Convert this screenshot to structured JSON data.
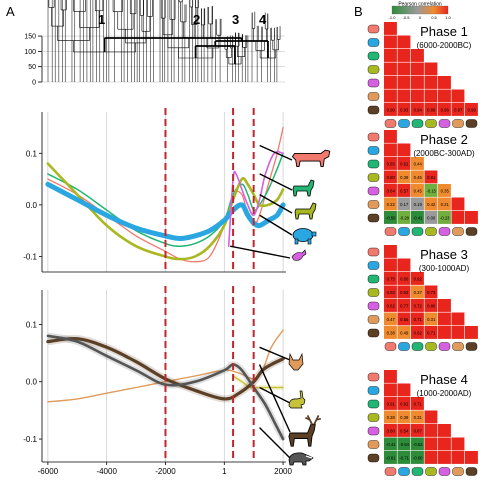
{
  "panel_labels": {
    "a": "A",
    "b": "B"
  },
  "colors": {
    "cattle": "#f07a6e",
    "goat": "#22b573",
    "sheep": "#a8b820",
    "pig": "#2aa7e0",
    "chicken": "#d560e0",
    "dog": "#e09a5a",
    "rabbit": "#c6c23a",
    "deer": "#5c4026",
    "badger": "#555555",
    "phase_line": "#c0272d",
    "matrix_high": "#e8261e",
    "matrix_low": "#2e8b3a"
  },
  "chart_data": [
    {
      "type": "dendrogram",
      "yticks": [
        0,
        50,
        100,
        150
      ],
      "ylim": [
        0,
        160
      ],
      "cluster_labels": [
        "1",
        "2",
        "3",
        "4"
      ]
    },
    {
      "type": "line",
      "xlim": [
        -6200,
        2100
      ],
      "ylim": [
        -0.13,
        0.18
      ],
      "yticks": [
        0.1,
        0.0,
        -0.1
      ],
      "ytick_labels": [
        "0.1",
        "0.0",
        "-0.1"
      ],
      "xgrid": [
        -6000,
        -4000,
        -2000,
        1,
        2000
      ],
      "phase_lines": [
        -2000,
        300,
        1000
      ],
      "series": [
        {
          "key": "cattle",
          "x": [
            -6000,
            -5000,
            -4000,
            -3000,
            -2000,
            -1500,
            -1000,
            -500,
            0,
            300,
            600,
            800,
            1000,
            1200,
            1500,
            1800,
            2000
          ],
          "y": [
            0.05,
            0.02,
            -0.02,
            -0.06,
            -0.09,
            -0.105,
            -0.11,
            -0.1,
            -0.04,
            0.02,
            0.02,
            -0.02,
            -0.04,
            -0.02,
            0.04,
            0.1,
            0.15
          ]
        },
        {
          "key": "goat",
          "x": [
            -6000,
            -5000,
            -4000,
            -3000,
            -2000,
            -1500,
            -1000,
            -500,
            0,
            300,
            600,
            800,
            1000,
            1200,
            1500,
            1800,
            2000
          ],
          "y": [
            0.06,
            0.03,
            -0.01,
            -0.05,
            -0.075,
            -0.08,
            -0.075,
            -0.06,
            -0.03,
            0.02,
            0.04,
            0.02,
            -0.01,
            0.0,
            0.03,
            0.07,
            0.1
          ]
        },
        {
          "key": "sheep",
          "x": [
            -6000,
            -5000,
            -4000,
            -3000,
            -2000,
            -1500,
            -1000,
            -500,
            0,
            300,
            600,
            800,
            1000,
            1200,
            1500,
            1800,
            2000
          ],
          "y": [
            0.08,
            0.02,
            -0.04,
            -0.08,
            -0.1,
            -0.105,
            -0.1,
            -0.08,
            -0.04,
            0.01,
            0.05,
            0.04,
            0.02,
            0.0,
            0.0,
            0.01,
            0.03
          ]
        },
        {
          "key": "pig",
          "x": [
            -6000,
            -5000,
            -4000,
            -3000,
            -2000,
            -1500,
            -1000,
            -500,
            0,
            300,
            600,
            800,
            1000,
            1200,
            1500,
            1800,
            2000
          ],
          "y": [
            0.04,
            0.01,
            -0.02,
            -0.045,
            -0.06,
            -0.065,
            -0.06,
            -0.05,
            -0.03,
            -0.01,
            0.0,
            -0.02,
            -0.035,
            -0.04,
            -0.03,
            -0.02,
            0.0
          ]
        },
        {
          "key": "chicken",
          "x": [
            150,
            300,
            400,
            600,
            800,
            1000,
            1200,
            1400,
            1700,
            2000
          ],
          "y": [
            -0.08,
            0.05,
            0.06,
            0.03,
            0.0,
            -0.02,
            0.01,
            0.06,
            0.1,
            0.1
          ]
        }
      ]
    },
    {
      "type": "line",
      "xlim": [
        -6200,
        2100
      ],
      "ylim": [
        -0.14,
        0.16
      ],
      "yticks": [
        0.1,
        0.0,
        -0.1
      ],
      "ytick_labels": [
        "0.1",
        "0.0",
        "-0.1"
      ],
      "xticks": [
        -6000,
        -4000,
        -2000,
        1,
        2000
      ],
      "xtick_labels": [
        "-6000",
        "-4000",
        "-2000",
        "1",
        "2000"
      ],
      "phase_lines": [
        -2000,
        300,
        1000
      ],
      "series": [
        {
          "key": "dog",
          "x": [
            -6000,
            -5000,
            -4000,
            -3000,
            -2000,
            -1000,
            0,
            500,
            1000,
            1300,
            1600,
            2000
          ],
          "y": [
            -0.035,
            -0.03,
            -0.02,
            -0.01,
            0.0,
            0.01,
            0.02,
            0.015,
            0.005,
            0.02,
            0.06,
            0.09
          ]
        },
        {
          "key": "rabbit",
          "x": [
            300,
            600,
            900,
            1200,
            1500,
            1800,
            2000
          ],
          "y": [
            0.01,
            0.0,
            -0.01,
            -0.01,
            -0.01,
            -0.01,
            -0.01
          ]
        },
        {
          "key": "deer",
          "x": [
            -6000,
            -5000,
            -4000,
            -3000,
            -2000,
            -1000,
            0,
            500,
            1000,
            1300,
            1600,
            2000
          ],
          "y": [
            0.07,
            0.075,
            0.06,
            0.035,
            0.005,
            -0.015,
            -0.03,
            -0.02,
            0.0,
            0.02,
            0.03,
            0.04
          ]
        },
        {
          "key": "badger",
          "x": [
            -6000,
            -5000,
            -4000,
            -3000,
            -2000,
            -1000,
            0,
            300,
            600,
            1000,
            1400,
            1800,
            2000
          ],
          "y": [
            0.08,
            0.07,
            0.045,
            0.02,
            -0.005,
            0.0,
            0.02,
            0.03,
            0.02,
            -0.01,
            -0.04,
            -0.08,
            -0.1
          ]
        }
      ]
    },
    {
      "type": "heatmap",
      "colorbar": {
        "title": "Pearson correlation",
        "ticks": [
          "-1.0",
          "-0.5",
          "0",
          "0.5",
          "1.0"
        ]
      },
      "phases": [
        {
          "name": "Phase 1",
          "period": "(6000-2000BC)",
          "rows": [
            [
              "0.90",
              "0.93",
              "0.94",
              "0.88",
              "0.96",
              "0.97",
              "0.99"
            ]
          ]
        },
        {
          "name": "Phase 2",
          "period": "(2000BC-300AD)",
          "rows": [
            [
              "0.85",
              "0.62",
              "0.44",
              "0.71",
              "0.58"
            ],
            [
              "0.80",
              "0.39",
              "0.45",
              "0.81",
              "0.72"
            ],
            [
              "0.64",
              "0.57",
              "0.45",
              "-0.15",
              "0.35"
            ],
            [
              "0.22",
              "0.17",
              "0.19",
              "0.42",
              "0.21"
            ],
            [
              "-0.59",
              "-0.28",
              "-0.41",
              "0.08",
              "-0.23"
            ]
          ]
        },
        {
          "name": "Phase 3",
          "period": "(300-1000AD)",
          "rows": [
            [
              "0.75",
              "0.80",
              "0.92",
              "0.44"
            ],
            [
              "0.93",
              "0.93",
              "0.37",
              "0.73"
            ],
            [
              "0.62",
              "0.77",
              "0.72",
              "0.80"
            ],
            [
              "0.47",
              "0.56",
              "0.71",
              "0.31"
            ],
            [
              "0.38",
              "0.49",
              "0.62",
              "0.71"
            ]
          ]
        },
        {
          "name": "Phase 4",
          "period": "(1000-2000AD)",
          "rows": [
            [
              "0.91",
              "0.82",
              "0.71"
            ],
            [
              "0.38",
              "0.39",
              "0.31"
            ],
            [
              "0.60",
              "0.54",
              "0.87"
            ],
            [
              "-0.41",
              "-0.64",
              "-0.53"
            ],
            [
              "-0.81",
              "-0.71",
              "-0.60"
            ]
          ]
        }
      ]
    }
  ]
}
